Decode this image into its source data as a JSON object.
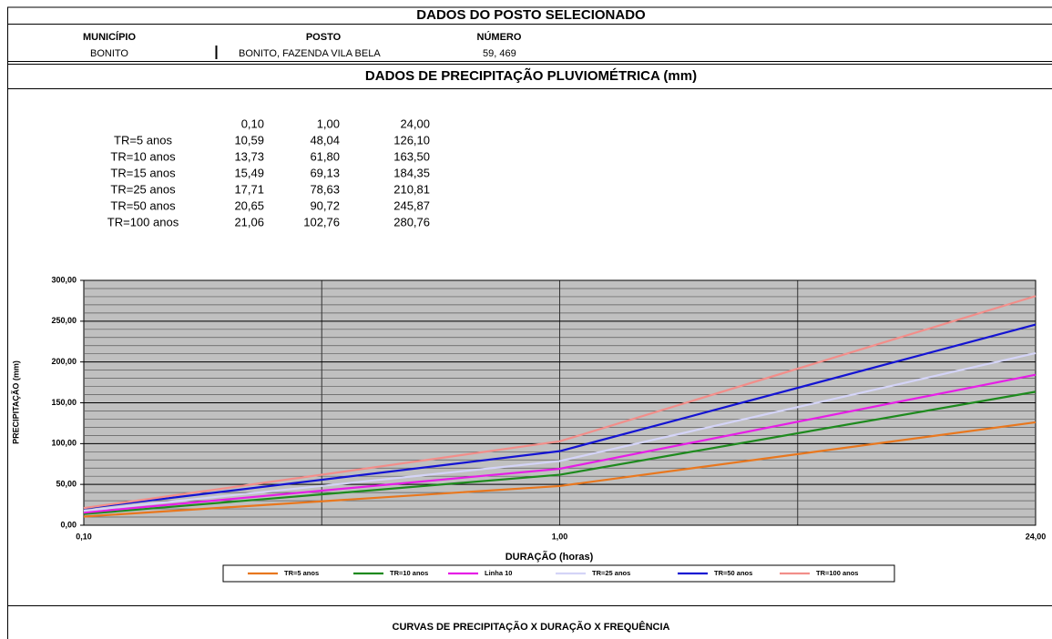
{
  "header": {
    "title": "DADOS DO POSTO SELECIONADO",
    "labels": [
      "MUNICÍPIO",
      "POSTO",
      "NÚMERO"
    ],
    "values": [
      "BONITO",
      "BONITO, FAZENDA VILA BELA",
      "59, 469"
    ]
  },
  "section_title": "DADOS DE PRECIPITAÇÃO PLUVIOMÉTRICA (mm)",
  "table": {
    "columns": [
      "0,10",
      "1,00",
      "24,00"
    ],
    "rows": [
      [
        "TR=5 anos",
        "10,59",
        "48,04",
        "126,10"
      ],
      [
        "TR=10 anos",
        "13,73",
        "61,80",
        "163,50"
      ],
      [
        "TR=15 anos",
        "15,49",
        "69,13",
        "184,35"
      ],
      [
        "TR=25 anos",
        "17,71",
        "78,63",
        "210,81"
      ],
      [
        "TR=50 anos",
        "20,65",
        "90,72",
        "245,87"
      ],
      [
        "TR=100 anos",
        "21,06",
        "102,76",
        "280,76"
      ]
    ]
  },
  "chart_data": {
    "type": "line",
    "x_label": "DURAÇÃO (horas)",
    "y_label": "PRECIPITAÇÃO (mm)",
    "categories": [
      "0,10",
      "1,00",
      "24,00"
    ],
    "ylim": [
      0,
      300
    ],
    "yticks": [
      {
        "value": 0,
        "label": "0,00"
      },
      {
        "value": 50,
        "label": "50,00"
      },
      {
        "value": 100,
        "label": "100,00"
      },
      {
        "value": 150,
        "label": "150,00"
      },
      {
        "value": 200,
        "label": "200,00"
      },
      {
        "value": 250,
        "label": "250,00"
      },
      {
        "value": 300,
        "label": "300,00"
      }
    ],
    "grid": true,
    "series": [
      {
        "name": "TR=5 anos",
        "color": "#e8771e",
        "values": [
          10.59,
          48.04,
          126.1
        ]
      },
      {
        "name": "TR=10 anos",
        "color": "#1e8a1e",
        "values": [
          13.73,
          61.8,
          163.5
        ]
      },
      {
        "name": "Linha 10",
        "color": "#e61ee6",
        "values": [
          15.49,
          69.13,
          184.35
        ]
      },
      {
        "name": "TR=25 anos",
        "color": "#d4d4f7",
        "values": [
          17.71,
          78.63,
          210.81
        ]
      },
      {
        "name": "TR=50 anos",
        "color": "#1414d2",
        "values": [
          20.65,
          90.72,
          245.87
        ]
      },
      {
        "name": "TR=100 anos",
        "color": "#f28e8a",
        "values": [
          21.06,
          102.76,
          280.76
        ]
      }
    ]
  },
  "footer_title": "CURVAS DE PRECIPITAÇÃO X DURAÇÃO X FREQUÊNCIA"
}
